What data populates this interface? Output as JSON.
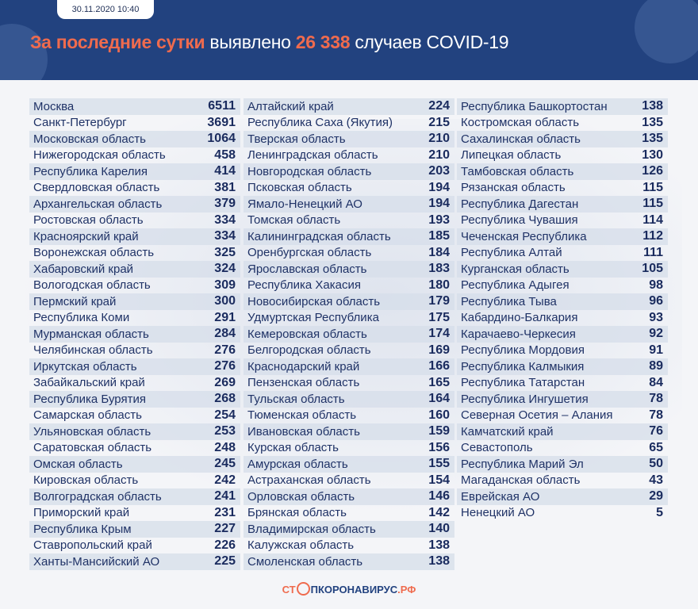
{
  "header": {
    "date": "30.11.2020 10:40",
    "title_highlight": "За последние сутки",
    "title_mid": " выявлено ",
    "count": "26 338",
    "title_end": " случаев COVID-19"
  },
  "columns": [
    [
      [
        "Москва",
        "6511"
      ],
      [
        "Санкт-Петербург",
        "3691"
      ],
      [
        "Московская область",
        "1064"
      ],
      [
        "Нижегородская область",
        "458"
      ],
      [
        "Республика Карелия",
        "414"
      ],
      [
        "Свердловская область",
        "381"
      ],
      [
        "Архангельская область",
        "379"
      ],
      [
        "Ростовская область",
        "334"
      ],
      [
        "Красноярский край",
        "334"
      ],
      [
        "Воронежская область",
        "325"
      ],
      [
        "Хабаровский край",
        "324"
      ],
      [
        "Вологодская область",
        "309"
      ],
      [
        "Пермский край",
        "300"
      ],
      [
        "Республика Коми",
        "291"
      ],
      [
        "Мурманская область",
        "284"
      ],
      [
        "Челябинская область",
        "276"
      ],
      [
        "Иркутская область",
        "276"
      ],
      [
        "Забайкальский край",
        "269"
      ],
      [
        "Республика Бурятия",
        "268"
      ],
      [
        "Самарская область",
        "254"
      ],
      [
        "Ульяновская область",
        "253"
      ],
      [
        "Саратовская область",
        "248"
      ],
      [
        "Омская область",
        "245"
      ],
      [
        "Кировская область",
        "242"
      ],
      [
        "Волгоградская область",
        "241"
      ],
      [
        "Приморский край",
        "231"
      ],
      [
        "Республика Крым",
        "227"
      ],
      [
        "Ставропольский край",
        "226"
      ],
      [
        "Ханты-Мансийский АО",
        "225"
      ]
    ],
    [
      [
        "Алтайский край",
        "224"
      ],
      [
        "Республика Саха (Якутия)",
        "215"
      ],
      [
        "Тверская область",
        "210"
      ],
      [
        "Ленинградская область",
        "210"
      ],
      [
        "Новгородская область",
        "203"
      ],
      [
        "Псковская область",
        "194"
      ],
      [
        "Ямало-Ненецкий АО",
        "194"
      ],
      [
        "Томская область",
        "193"
      ],
      [
        "Калининградская область",
        "185"
      ],
      [
        "Оренбургская область",
        "184"
      ],
      [
        "Ярославская область",
        "183"
      ],
      [
        "Республика Хакасия",
        "180"
      ],
      [
        "Новосибирская область",
        "179"
      ],
      [
        "Удмуртская Республика",
        "175"
      ],
      [
        "Кемеровская область",
        "174"
      ],
      [
        "Белгородская область",
        "169"
      ],
      [
        "Краснодарский край",
        "166"
      ],
      [
        "Пензенская область",
        "165"
      ],
      [
        "Тульская область",
        "164"
      ],
      [
        "Тюменская область",
        "160"
      ],
      [
        "Ивановская область",
        "159"
      ],
      [
        "Курская область",
        "156"
      ],
      [
        "Амурская область",
        "155"
      ],
      [
        "Астраханская область",
        "154"
      ],
      [
        "Орловская область",
        "146"
      ],
      [
        "Брянская область",
        "142"
      ],
      [
        "Владимирская область",
        "140"
      ],
      [
        "Калужская область",
        "138"
      ],
      [
        "Смоленская область",
        "138"
      ]
    ],
    [
      [
        "Республика Башкортостан",
        "138"
      ],
      [
        "Костромская область",
        "135"
      ],
      [
        "Сахалинская область",
        "135"
      ],
      [
        "Липецкая область",
        "130"
      ],
      [
        "Тамбовская область",
        "126"
      ],
      [
        "Рязанская область",
        "115"
      ],
      [
        "Республика Дагестан",
        "115"
      ],
      [
        "Республика Чувашия",
        "114"
      ],
      [
        "Чеченская Республика",
        "112"
      ],
      [
        "Республика Алтай",
        "111"
      ],
      [
        "Курганская область",
        "105"
      ],
      [
        "Республика Адыгея",
        "98"
      ],
      [
        "Республика Тыва",
        "96"
      ],
      [
        "Кабардино-Балкария",
        "93"
      ],
      [
        "Карачаево-Черкесия",
        "92"
      ],
      [
        "Республика Мордовия",
        "91"
      ],
      [
        "Республика Калмыкия",
        "89"
      ],
      [
        "Республика Татарстан",
        "84"
      ],
      [
        "Республика Ингушетия",
        "78"
      ],
      [
        "Северная Осетия – Алания",
        "78"
      ],
      [
        "Камчатский край",
        "76"
      ],
      [
        "Севастополь",
        "65"
      ],
      [
        "Республика Марий Эл",
        "50"
      ],
      [
        "Магаданская область",
        "43"
      ],
      [
        "Еврейская АО",
        "29"
      ],
      [
        "Ненецкий АО",
        "5"
      ]
    ]
  ],
  "footer": {
    "logo_a": "СТ",
    "logo_b": "ПКОРОНАВИРУС",
    "logo_c": ".РФ"
  },
  "colors": {
    "header": "#22427f",
    "accent": "#ef6b4e"
  }
}
